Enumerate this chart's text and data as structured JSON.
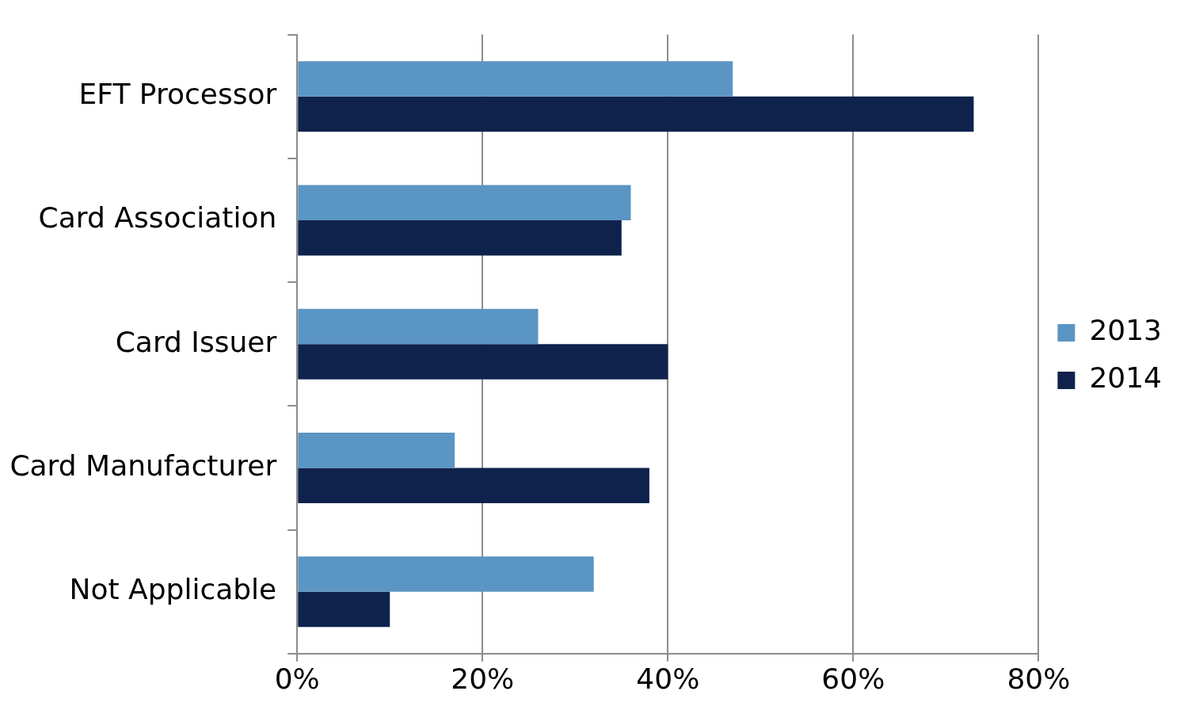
{
  "chart_data": {
    "type": "bar",
    "orientation": "horizontal",
    "categories": [
      "EFT Processor",
      "Card Association",
      "Card Issuer",
      "Card Manufacturer",
      "Not Applicable"
    ],
    "series": [
      {
        "name": "2013",
        "color": "#5b95c3",
        "values": [
          47,
          36,
          26,
          17,
          32
        ]
      },
      {
        "name": "2014",
        "color": "#0f224c",
        "values": [
          73,
          35,
          40,
          38,
          10
        ]
      }
    ],
    "xlim": [
      0,
      80
    ],
    "xticks": [
      {
        "value": 0,
        "label": "0%"
      },
      {
        "value": 20,
        "label": "20%"
      },
      {
        "value": 40,
        "label": "40%"
      },
      {
        "value": 60,
        "label": "60%"
      },
      {
        "value": 80,
        "label": "80%"
      }
    ],
    "grid": "x",
    "legend": "right"
  }
}
